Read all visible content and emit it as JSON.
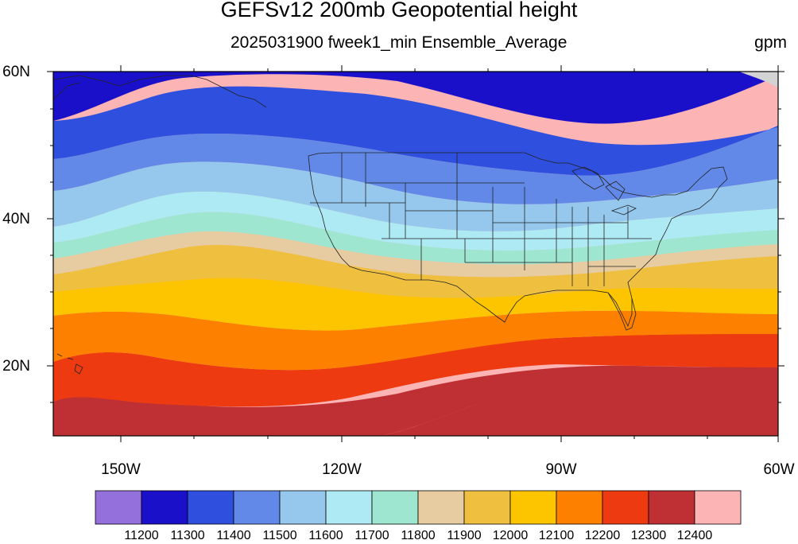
{
  "title": "GEFSv12 200mb Geopotential height",
  "subtitle": "2025031900 fweek1_min Ensemble_Average",
  "units": "gpm",
  "lat_labels": [
    "60N",
    "40N",
    "20N"
  ],
  "lon_labels": [
    "150W",
    "120W",
    "90W",
    "60W"
  ],
  "colorbar": {
    "levels": [
      "11200",
      "11300",
      "11400",
      "11500",
      "11600",
      "11700",
      "11800",
      "11900",
      "12000",
      "12100",
      "12200",
      "12300",
      "12400"
    ],
    "colors": [
      "#9370db",
      "#1a10c9",
      "#2f4fde",
      "#6389e8",
      "#96c8ee",
      "#aeeaf4",
      "#9ee6d0",
      "#e6cca0",
      "#efc040",
      "#fdc500",
      "#fd8000",
      "#ed3a10",
      "#bf3035",
      "#fdb4b4"
    ]
  },
  "map": {
    "lat_range": [
      10,
      60
    ],
    "lon_range": [
      -160,
      -60
    ],
    "features": [
      "coastlines",
      "US state boundaries",
      "filled contours"
    ]
  }
}
